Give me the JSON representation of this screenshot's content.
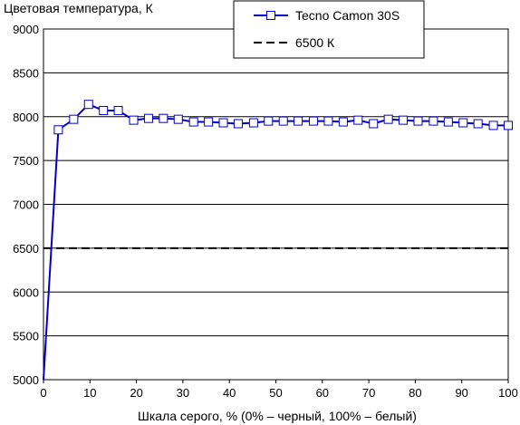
{
  "chart_data": {
    "type": "line",
    "title": "",
    "ylabel": "Цветовая температура, К",
    "xlabel": "Шкала серого, % (0% – черный, 100% – белый)",
    "xlim": [
      0,
      100
    ],
    "ylim": [
      5000,
      9000
    ],
    "x_ticks": [
      "0",
      "10",
      "20",
      "30",
      "40",
      "50",
      "60",
      "70",
      "80",
      "90",
      "100"
    ],
    "y_ticks": [
      "5000",
      "5500",
      "6000",
      "6500",
      "7000",
      "7500",
      "8000",
      "8500",
      "9000"
    ],
    "grid": "horizontal",
    "legend_position": "top-right",
    "series": [
      {
        "name": "Tecno Camon 30S",
        "color": "#0000cc",
        "marker": "open-square",
        "x": [
          0,
          3.2,
          6.5,
          9.7,
          12.9,
          16.1,
          19.4,
          22.6,
          25.8,
          29.0,
          32.3,
          35.5,
          38.7,
          41.9,
          45.2,
          48.4,
          51.6,
          54.8,
          58.1,
          61.3,
          64.5,
          67.7,
          71.0,
          74.2,
          77.4,
          80.6,
          83.9,
          87.1,
          90.3,
          93.5,
          96.8,
          100
        ],
        "y": [
          5000,
          7850,
          7970,
          8140,
          8070,
          8070,
          7960,
          7980,
          7980,
          7970,
          7940,
          7940,
          7930,
          7920,
          7930,
          7950,
          7950,
          7950,
          7950,
          7950,
          7940,
          7960,
          7920,
          7970,
          7960,
          7950,
          7950,
          7940,
          7930,
          7920,
          7900,
          7900
        ]
      },
      {
        "name": "6500 К",
        "color": "#000000",
        "style": "dashed",
        "x": [
          0,
          100
        ],
        "y": [
          6500,
          6500
        ]
      }
    ]
  }
}
